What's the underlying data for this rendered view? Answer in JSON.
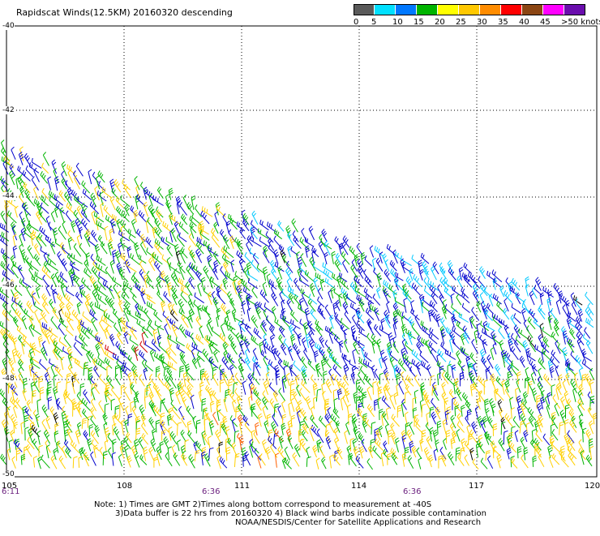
{
  "title": "Rapidscat Winds(12.5KM) 20160320 descending",
  "colorbar": {
    "unit": "knots",
    "labels": [
      "0",
      "5",
      "10",
      "15",
      "20",
      "25",
      "30",
      "35",
      "40",
      "45",
      ">50 knots"
    ],
    "colors": [
      "#5a5a5a",
      "#00e0ff",
      "#0078ff",
      "#00b400",
      "#ffff00",
      "#ffc800",
      "#ff8c00",
      "#ff0000",
      "#8b4513",
      "#ff00ff",
      "#6a0dad"
    ]
  },
  "map": {
    "lat_labels": [
      "-40",
      "-42",
      "-44",
      "-46",
      "-48",
      "-50"
    ],
    "lon_labels": [
      "105",
      "108",
      "111",
      "114",
      "117",
      "120"
    ],
    "time_labels": [
      "6:11",
      "6:36",
      "6:36"
    ],
    "wind_colors": {
      "calm": "#00b400",
      "moderate": "#0000cc",
      "light": "#00c8ff",
      "strong": "#ffd000",
      "gale": "#ff6000",
      "storm": "#d00000",
      "contaminated": "#000000"
    }
  },
  "notes": {
    "line1": "Note: 1) Times are GMT 2)Times along bottom correspond to measurement at -40S",
    "line2": "3)Data buffer is 22 hrs from 20160320 4) Black wind barbs indicate possible contamination",
    "line3": "NOAA/NESDIS/Center for Satellite Applications and Research"
  }
}
